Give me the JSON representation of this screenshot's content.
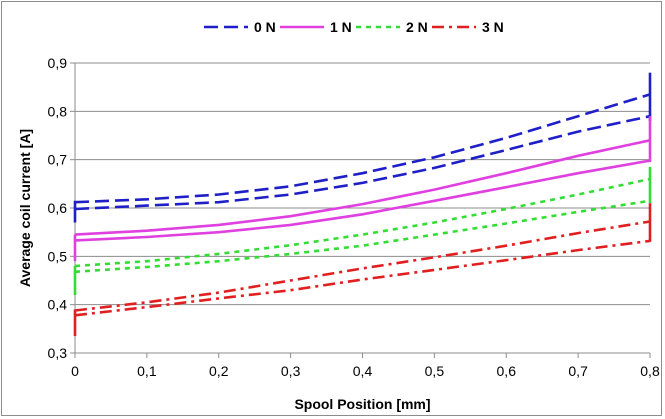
{
  "chart_data": {
    "type": "line",
    "title": "",
    "xlabel": "Spool Position [mm]",
    "ylabel": "Average coil current [A]",
    "xlim": [
      0,
      0.8
    ],
    "ylim": [
      0.3,
      0.9
    ],
    "x_ticks": [
      "0",
      "0,1",
      "0,2",
      "0,3",
      "0,4",
      "0,5",
      "0,6",
      "0,7",
      "0,8"
    ],
    "y_ticks": [
      "0,3",
      "0,4",
      "0,5",
      "0,6",
      "0,7",
      "0,8",
      "0,9"
    ],
    "grid": "horizontal",
    "legend_position": "top",
    "series": [
      {
        "name": "0 N",
        "color": "#1f1fc8",
        "dash": "long-dash",
        "branches": [
          {
            "x": [
              0,
              0.1,
              0.2,
              0.3,
              0.4,
              0.5,
              0.6,
              0.7,
              0.8
            ],
            "y": [
              0.612,
              0.618,
              0.628,
              0.645,
              0.672,
              0.705,
              0.745,
              0.79,
              0.835
            ]
          },
          {
            "x": [
              0,
              0.1,
              0.2,
              0.3,
              0.4,
              0.5,
              0.6,
              0.7,
              0.8
            ],
            "y": [
              0.598,
              0.605,
              0.612,
              0.628,
              0.652,
              0.683,
              0.72,
              0.758,
              0.79
            ]
          }
        ],
        "end_jumps": [
          {
            "x": 0,
            "y": [
              0.57,
              0.615
            ]
          },
          {
            "x": 0.8,
            "y": [
              0.78,
              0.88
            ]
          }
        ]
      },
      {
        "name": "1 N",
        "color": "#e040e0",
        "dash": "solid",
        "branches": [
          {
            "x": [
              0,
              0.1,
              0.2,
              0.3,
              0.4,
              0.5,
              0.6,
              0.7,
              0.8
            ],
            "y": [
              0.545,
              0.553,
              0.565,
              0.583,
              0.608,
              0.638,
              0.672,
              0.708,
              0.74
            ]
          },
          {
            "x": [
              0,
              0.1,
              0.2,
              0.3,
              0.4,
              0.5,
              0.6,
              0.7,
              0.8
            ],
            "y": [
              0.533,
              0.54,
              0.55,
              0.565,
              0.587,
              0.615,
              0.643,
              0.672,
              0.698
            ]
          }
        ],
        "end_jumps": [
          {
            "x": 0,
            "y": [
              0.49,
              0.545
            ]
          },
          {
            "x": 0.8,
            "y": [
              0.695,
              0.79
            ]
          }
        ]
      },
      {
        "name": "2 N",
        "color": "#33dd33",
        "dash": "short-dash",
        "branches": [
          {
            "x": [
              0,
              0.1,
              0.2,
              0.3,
              0.4,
              0.5,
              0.6,
              0.7,
              0.8
            ],
            "y": [
              0.48,
              0.49,
              0.505,
              0.523,
              0.545,
              0.57,
              0.598,
              0.628,
              0.66
            ]
          },
          {
            "x": [
              0,
              0.1,
              0.2,
              0.3,
              0.4,
              0.5,
              0.6,
              0.7,
              0.8
            ],
            "y": [
              0.468,
              0.478,
              0.49,
              0.505,
              0.522,
              0.545,
              0.568,
              0.592,
              0.615
            ]
          }
        ],
        "end_jumps": [
          {
            "x": 0,
            "y": [
              0.42,
              0.48
            ]
          },
          {
            "x": 0.8,
            "y": [
              0.61,
              0.685
            ]
          }
        ]
      },
      {
        "name": "3 N",
        "color": "#e02020",
        "dash": "dash-dot",
        "branches": [
          {
            "x": [
              0,
              0.1,
              0.2,
              0.3,
              0.4,
              0.5,
              0.6,
              0.7,
              0.8
            ],
            "y": [
              0.388,
              0.405,
              0.425,
              0.45,
              0.475,
              0.498,
              0.522,
              0.548,
              0.572
            ]
          },
          {
            "x": [
              0,
              0.1,
              0.2,
              0.3,
              0.4,
              0.5,
              0.6,
              0.7,
              0.8
            ],
            "y": [
              0.378,
              0.395,
              0.413,
              0.43,
              0.452,
              0.472,
              0.492,
              0.513,
              0.532
            ]
          }
        ],
        "end_jumps": [
          {
            "x": 0,
            "y": [
              0.335,
              0.39
            ]
          },
          {
            "x": 0.8,
            "y": [
              0.53,
              0.61
            ]
          }
        ]
      }
    ]
  }
}
